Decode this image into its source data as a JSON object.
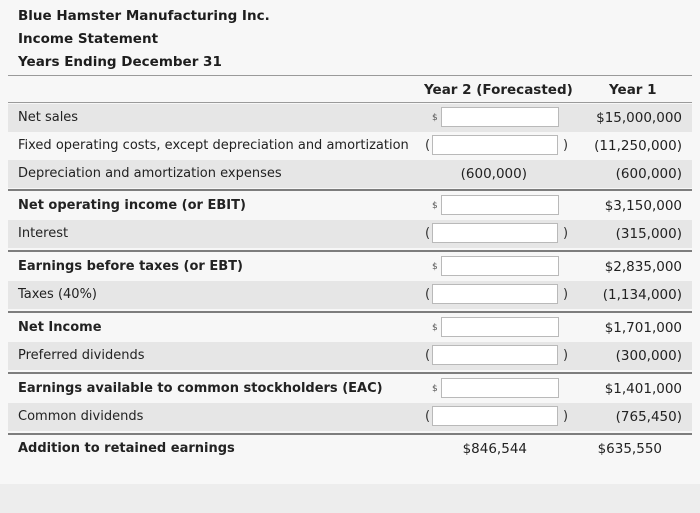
{
  "header": {
    "company": "Blue Hamster Manufacturing Inc.",
    "statement": "Income Statement",
    "period": "Years Ending December 31"
  },
  "columns": {
    "year2": "Year 2 (Forecasted)",
    "year1": "Year 1"
  },
  "rows": [
    {
      "label": "Net sales",
      "currency": "$",
      "year2": "",
      "year1": "$15,000,000"
    },
    {
      "label": "Fixed operating costs, except depreciation and amortization",
      "open": "(",
      "close": ")",
      "year2": "",
      "year1": "(11,250,000)"
    },
    {
      "label": "Depreciation and amortization expenses",
      "year2": "(600,000)",
      "year1": "(600,000)"
    },
    {
      "label": "Net operating income (or EBIT)",
      "currency": "$",
      "year2": "",
      "year1": "$3,150,000"
    },
    {
      "label": "Interest",
      "open": "(",
      "close": ")",
      "year2": "",
      "year1": "(315,000)"
    },
    {
      "label": "Earnings before taxes (or EBT)",
      "currency": "$",
      "year2": "",
      "year1": "$2,835,000"
    },
    {
      "label": "Taxes (40%)",
      "open": "(",
      "close": ")",
      "year2": "",
      "year1": "(1,134,000)"
    },
    {
      "label": "Net Income",
      "currency": "$",
      "year2": "",
      "year1": "$1,701,000"
    },
    {
      "label": "Preferred dividends",
      "open": "(",
      "close": ")",
      "year2": "",
      "year1": "(300,000)"
    },
    {
      "label": "Earnings available to common stockholders (EAC)",
      "currency": "$",
      "year2": "",
      "year1": "$1,401,000"
    },
    {
      "label": "Common dividends",
      "open": "(",
      "close": ")",
      "year2": "",
      "year1": "(765,450)"
    },
    {
      "label": "Addition to retained earnings",
      "year2": "$846,544",
      "year1": "$635,550"
    }
  ]
}
